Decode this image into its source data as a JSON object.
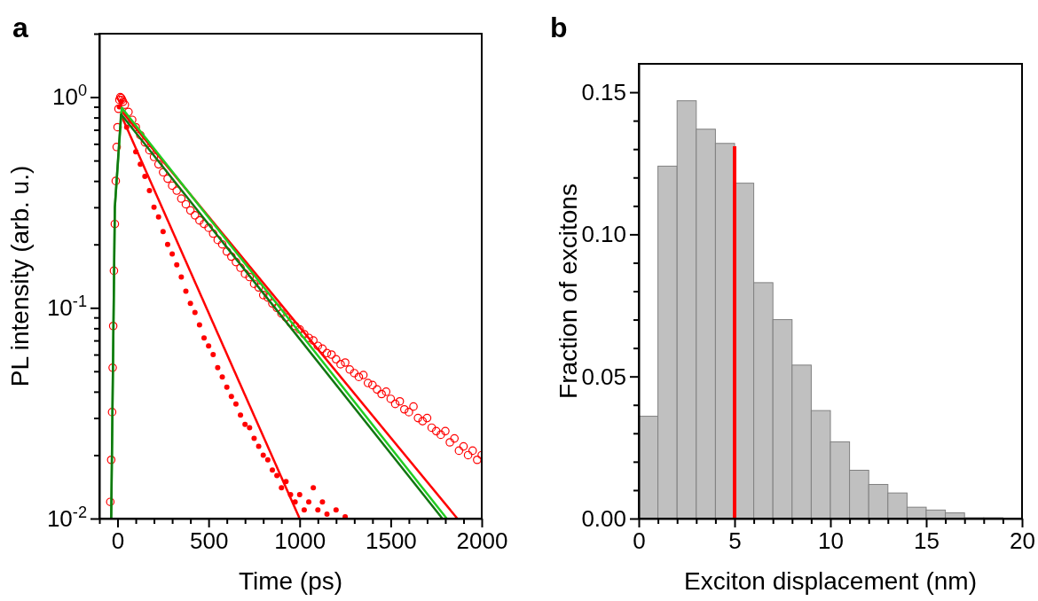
{
  "chart_data": [
    {
      "type": "scatter",
      "title": "a",
      "xlabel": "Time (ps)",
      "ylabel": "PL intensity (arb. u.)",
      "log": "y",
      "xlim": [
        -100,
        2000
      ],
      "xticks": [
        {
          "value": -100,
          "label": null
        },
        0,
        {
          "value": 100,
          "label": null
        },
        {
          "value": 200,
          "label": null
        },
        {
          "value": 300,
          "label": null
        },
        {
          "value": 400,
          "label": null
        },
        500,
        {
          "value": 600,
          "label": null
        },
        {
          "value": 700,
          "label": null
        },
        {
          "value": 800,
          "label": null
        },
        {
          "value": 900,
          "label": null
        },
        1000,
        {
          "value": 1100,
          "label": null
        },
        {
          "value": 1200,
          "label": null
        },
        {
          "value": 1300,
          "label": null
        },
        {
          "value": 1400,
          "label": null
        },
        1500,
        {
          "value": 1600,
          "label": null
        },
        {
          "value": 1700,
          "label": null
        },
        {
          "value": 1800,
          "label": null
        },
        {
          "value": 1900,
          "label": null
        },
        2000
      ],
      "ylim": [
        0.01,
        2
      ],
      "yticks": [
        {
          "value": 0.01,
          "label": "10$^{-2}$"
        },
        {
          "value": 0.02,
          "label": null
        },
        {
          "value": 0.03,
          "label": null
        },
        {
          "value": 0.04,
          "label": null
        },
        {
          "value": 0.05,
          "label": null
        },
        {
          "value": 0.06,
          "label": null
        },
        {
          "value": 0.07,
          "label": null
        },
        {
          "value": 0.08,
          "label": null
        },
        {
          "value": 0.09,
          "label": null
        },
        {
          "value": 0.1,
          "label": "10$^{-1}$"
        },
        {
          "value": 0.2,
          "label": null
        },
        {
          "value": 0.3,
          "label": null
        },
        {
          "value": 0.4,
          "label": null
        },
        {
          "value": 0.5,
          "label": null
        },
        {
          "value": 0.6,
          "label": null
        },
        {
          "value": 0.7,
          "label": null
        },
        {
          "value": 0.8,
          "label": null
        },
        {
          "value": 0.9,
          "label": null
        },
        {
          "value": 1,
          "label": "10$^{0}$"
        },
        {
          "value": 2,
          "label": null
        }
      ],
      "series": [
        {
          "type": "scatter",
          "marker": "circle-open",
          "color": "#ff0000",
          "x": [
            -40,
            -35,
            -30,
            -27,
            -24,
            -20,
            -15,
            -10,
            -5,
            0,
            5,
            10,
            15,
            20,
            25,
            30,
            40,
            60,
            80,
            100,
            125,
            150,
            175,
            200,
            225,
            250,
            275,
            300,
            325,
            350,
            375,
            400,
            425,
            450,
            475,
            500,
            525,
            550,
            575,
            600,
            625,
            650,
            675,
            700,
            725,
            750,
            775,
            800,
            825,
            850,
            875,
            900,
            925,
            950,
            975,
            1000,
            1025,
            1050,
            1075,
            1100,
            1125,
            1150,
            1175,
            1200,
            1225,
            1250,
            1275,
            1300,
            1325,
            1350,
            1375,
            1400,
            1425,
            1450,
            1475,
            1500,
            1525,
            1550,
            1575,
            1600,
            1625,
            1650,
            1675,
            1700,
            1725,
            1750,
            1775,
            1800,
            1825,
            1850,
            1875,
            1900,
            1925,
            1950,
            1975,
            2000
          ],
          "values": [
            0.012,
            0.019,
            0.032,
            0.052,
            0.082,
            0.15,
            0.25,
            0.4,
            0.58,
            0.72,
            0.88,
            0.97,
            1.0,
            0.99,
            0.97,
            0.95,
            0.92,
            0.85,
            0.78,
            0.72,
            0.66,
            0.61,
            0.56,
            0.52,
            0.48,
            0.44,
            0.41,
            0.38,
            0.36,
            0.33,
            0.31,
            0.29,
            0.275,
            0.26,
            0.25,
            0.24,
            0.225,
            0.21,
            0.2,
            0.185,
            0.175,
            0.165,
            0.155,
            0.145,
            0.14,
            0.13,
            0.125,
            0.115,
            0.112,
            0.105,
            0.1,
            0.094,
            0.09,
            0.085,
            0.082,
            0.079,
            0.075,
            0.072,
            0.07,
            0.066,
            0.064,
            0.061,
            0.06,
            0.057,
            0.054,
            0.055,
            0.051,
            0.049,
            0.047,
            0.048,
            0.044,
            0.043,
            0.041,
            0.039,
            0.04,
            0.037,
            0.035,
            0.036,
            0.033,
            0.032,
            0.034,
            0.03,
            0.029,
            0.03,
            0.027,
            0.026,
            0.025,
            0.026,
            0.023,
            0.024,
            0.021,
            0.022,
            0.02,
            0.021,
            0.019,
            0.02
          ]
        },
        {
          "type": "scatter",
          "marker": "circle",
          "color": "#ff0000",
          "x": [
            10,
            20,
            50,
            100,
            125,
            150,
            175,
            200,
            225,
            250,
            275,
            300,
            325,
            350,
            375,
            400,
            425,
            450,
            475,
            500,
            525,
            550,
            575,
            600,
            625,
            650,
            675,
            700,
            725,
            750,
            775,
            800,
            825,
            850,
            875,
            900,
            925,
            950,
            975,
            1000,
            1025,
            1050,
            1075,
            1100,
            1125,
            1150,
            1200,
            1250
          ],
          "values": [
            0.9,
            0.95,
            0.72,
            0.55,
            0.48,
            0.42,
            0.36,
            0.3,
            0.27,
            0.23,
            0.2,
            0.18,
            0.16,
            0.14,
            0.12,
            0.105,
            0.095,
            0.083,
            0.072,
            0.066,
            0.06,
            0.052,
            0.047,
            0.042,
            0.038,
            0.035,
            0.031,
            0.028,
            0.027,
            0.024,
            0.022,
            0.02,
            0.019,
            0.017,
            0.016,
            0.014,
            0.015,
            0.013,
            0.012,
            0.013,
            0.011,
            0.012,
            0.014,
            0.011,
            0.012,
            0.0105,
            0.011,
            0.0102
          ]
        },
        {
          "type": "line",
          "color": "#ff0000",
          "x": [
            20,
            1000
          ],
          "values": [
            0.82,
            0.01
          ]
        },
        {
          "type": "line",
          "color": "#ff0000",
          "x": [
            22,
            1866
          ],
          "values": [
            0.86,
            0.01
          ]
        },
        {
          "type": "line",
          "color": "#22cc22",
          "x": [
            -35,
            -15,
            23,
            1808
          ],
          "values": [
            0.01,
            0.3,
            0.89,
            0.01
          ]
        },
        {
          "type": "line",
          "color": "#117711",
          "x": [
            -35,
            -15,
            19,
            1784
          ],
          "values": [
            0.01,
            0.3,
            0.83,
            0.01
          ]
        }
      ]
    },
    {
      "type": "histogram",
      "title": "b",
      "xlabel": "Exciton displacement (nm)",
      "ylabel": "Fraction of excitons",
      "color": "#c0c0c0",
      "xlim": [
        0,
        20
      ],
      "xticks": [
        0,
        {
          "value": 1,
          "label": null
        },
        {
          "value": 2,
          "label": null
        },
        {
          "value": 3,
          "label": null
        },
        {
          "value": 4,
          "label": null
        },
        5,
        {
          "value": 6,
          "label": null
        },
        {
          "value": 7,
          "label": null
        },
        {
          "value": 8,
          "label": null
        },
        {
          "value": 9,
          "label": null
        },
        10,
        {
          "value": 11,
          "label": null
        },
        {
          "value": 12,
          "label": null
        },
        {
          "value": 13,
          "label": null
        },
        {
          "value": 14,
          "label": null
        },
        15,
        {
          "value": 16,
          "label": null
        },
        {
          "value": 17,
          "label": null
        },
        {
          "value": 18,
          "label": null
        },
        {
          "value": 19,
          "label": null
        },
        20
      ],
      "ylim": [
        0,
        0.16
      ],
      "yticks": [
        {
          "value": 0,
          "label": "0.00"
        },
        {
          "value": 0.01,
          "label": null
        },
        {
          "value": 0.02,
          "label": null
        },
        {
          "value": 0.03,
          "label": null
        },
        {
          "value": 0.04,
          "label": null
        },
        {
          "value": 0.05,
          "label": "0.05"
        },
        {
          "value": 0.06,
          "label": null
        },
        {
          "value": 0.07,
          "label": null
        },
        {
          "value": 0.08,
          "label": null
        },
        {
          "value": 0.09,
          "label": null
        },
        {
          "value": 0.1,
          "label": "0.10"
        },
        {
          "value": 0.11,
          "label": null
        },
        {
          "value": 0.12,
          "label": null
        },
        {
          "value": 0.13,
          "label": null
        },
        {
          "value": 0.14,
          "label": null
        },
        {
          "value": 0.15,
          "label": "0.15"
        }
      ],
      "bins": [
        0,
        1,
        2,
        3,
        4,
        5,
        6,
        7,
        8,
        9,
        10,
        11,
        12,
        13,
        14,
        15,
        16,
        17,
        18,
        19
      ],
      "values": [
        0.036,
        0.124,
        0.147,
        0.137,
        0.132,
        0.118,
        0.083,
        0.07,
        0.054,
        0.038,
        0.027,
        0.017,
        0.012,
        0.009,
        0.004,
        0.003,
        0.002,
        0.0003,
        0.0003
      ],
      "series": [
        {
          "type": "line",
          "color": "#ff0000",
          "x": [
            5,
            5
          ],
          "values": [
            0,
            0.131
          ]
        }
      ]
    }
  ]
}
